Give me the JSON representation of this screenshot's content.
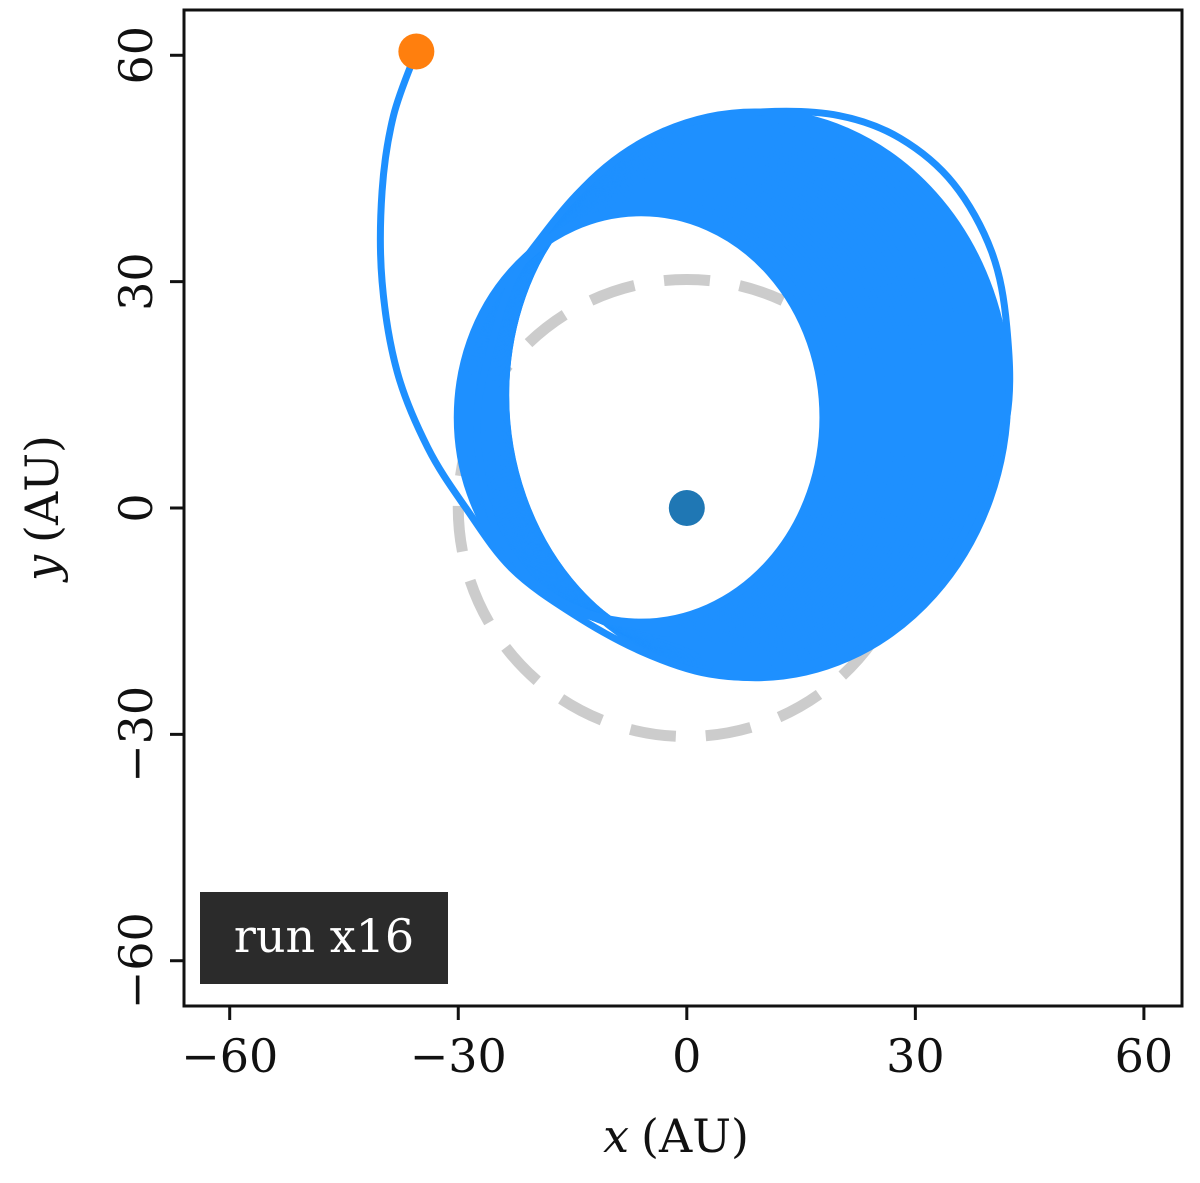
{
  "chart_data": {
    "type": "line",
    "xlabel_var": "x",
    "xlabel_unit": "(AU)",
    "ylabel_var": "y",
    "ylabel_unit": "(AU)",
    "xlim": [
      -66,
      65
    ],
    "ylim": [
      -66,
      66
    ],
    "xticks": [
      -60,
      -30,
      0,
      30,
      60
    ],
    "yticks": [
      -60,
      -30,
      0,
      30,
      60
    ],
    "xtick_labels": [
      "−60",
      "−30",
      "0",
      "30",
      "60"
    ],
    "ytick_labels": [
      "−60",
      "−30",
      "0",
      "30",
      "60"
    ],
    "grid": false,
    "annotation": "run x16",
    "reference_circle": {
      "center": [
        0,
        0
      ],
      "radius": 30,
      "color": "#cccccc",
      "style": "dashed"
    },
    "central_body": {
      "x": 0,
      "y": 0,
      "color": "#1f77b4"
    },
    "start_point": {
      "x": -35.5,
      "y": 60.5,
      "color": "#ff7f0e"
    },
    "trajectory": {
      "color": "#1e90ff",
      "initial_arc": [
        [
          -35.5,
          60.5
        ],
        [
          -38.5,
          52
        ],
        [
          -40,
          42
        ],
        [
          -40,
          30
        ],
        [
          -38,
          18
        ],
        [
          -34,
          8
        ],
        [
          -29,
          0
        ],
        [
          -23,
          -8
        ],
        [
          -15,
          -14
        ],
        [
          -6,
          -19
        ],
        [
          3,
          -22
        ],
        [
          12,
          -22
        ],
        [
          22,
          -18
        ],
        [
          32,
          -10
        ],
        [
          38,
          0
        ],
        [
          42,
          12
        ],
        [
          42,
          24
        ],
        [
          40,
          34
        ],
        [
          35,
          43
        ],
        [
          28,
          49
        ],
        [
          20,
          52
        ],
        [
          10,
          52.5
        ],
        [
          0,
          51
        ],
        [
          -8,
          47
        ],
        [
          -14,
          42
        ],
        [
          -19,
          36
        ],
        [
          -23,
          30
        ],
        [
          -25.5,
          22
        ],
        [
          -27.5,
          13
        ],
        [
          -27,
          5
        ],
        [
          -25,
          -3
        ],
        [
          -21,
          -9
        ]
      ],
      "orbit_band": {
        "center_x_start": 9,
        "center_x_end": 0,
        "center_y_start": 15,
        "center_y_end": 12,
        "rx_start": 33,
        "rx_end": 24,
        "ry_start": 37,
        "ry_end": 27,
        "tilt_deg": 0,
        "loops": 10
      }
    }
  }
}
